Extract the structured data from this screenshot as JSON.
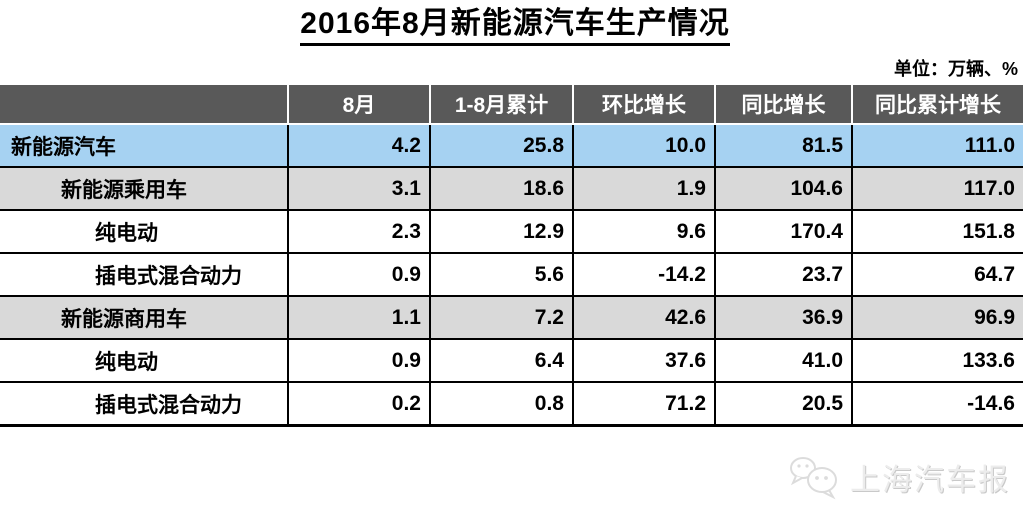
{
  "title": "2016年8月新能源汽车生产情况",
  "unit_note": "单位：万辆、%",
  "chart_data": {
    "type": "table",
    "title": "2016年8月新能源汽车生产情况",
    "unit_note": "单位：万辆、%",
    "columns": [
      "",
      "8月",
      "1-8月累计",
      "环比增长",
      "同比增长",
      "同比累计增长"
    ],
    "rows": [
      {
        "label": "新能源汽车",
        "level": 1,
        "style": "blue",
        "values": [
          "4.2",
          "25.8",
          "10.0",
          "81.5",
          "111.0"
        ]
      },
      {
        "label": "新能源乘用车",
        "level": 2,
        "style": "gray",
        "values": [
          "3.1",
          "18.6",
          "1.9",
          "104.6",
          "117.0"
        ]
      },
      {
        "label": "纯电动",
        "level": 3,
        "style": "white",
        "values": [
          "2.3",
          "12.9",
          "9.6",
          "170.4",
          "151.8"
        ]
      },
      {
        "label": "插电式混合动力",
        "level": 3,
        "style": "white",
        "values": [
          "0.9",
          "5.6",
          "-14.2",
          "23.7",
          "64.7"
        ]
      },
      {
        "label": "新能源商用车",
        "level": 2,
        "style": "gray",
        "values": [
          "1.1",
          "7.2",
          "42.6",
          "36.9",
          "96.9"
        ]
      },
      {
        "label": "纯电动",
        "level": 3,
        "style": "white",
        "values": [
          "0.9",
          "6.4",
          "37.6",
          "41.0",
          "133.6"
        ]
      },
      {
        "label": "插电式混合动力",
        "level": 3,
        "style": "white",
        "values": [
          "0.2",
          "0.8",
          "71.2",
          "20.5",
          "-14.6"
        ]
      }
    ]
  },
  "watermark": {
    "text": "上海汽车报",
    "icon": "wechat-icon"
  },
  "colors": {
    "header_bg": "#595959",
    "header_text": "#ffffff",
    "highlight_row": "#a6d2f2",
    "band_row": "#d9d9d9",
    "border": "#000000"
  }
}
